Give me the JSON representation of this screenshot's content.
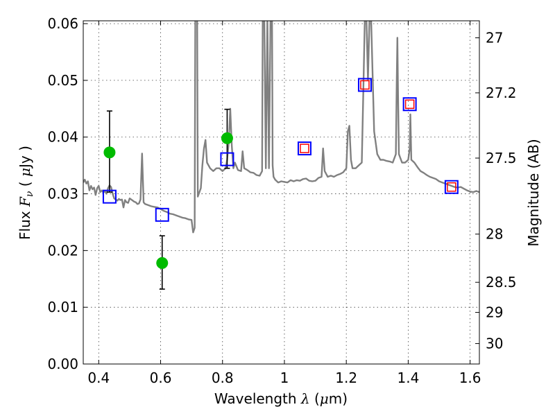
{
  "chart_data": {
    "type": "line",
    "xlabel": "Wavelength  λ (μm)",
    "ylabel": "Flux  F_ν  ( μJy )",
    "ylabel_parts": {
      "a": "Flux  ",
      "b": "F",
      "c": "ν",
      "d": "  ( ",
      "e": "μ",
      "f": "Jy )"
    },
    "xlabel_parts": {
      "a": "Wavelength  ",
      "b": "λ",
      "c": " (",
      "d": "μ",
      "e": "m)"
    },
    "y2label": "Magnitude (AB)",
    "xlim": [
      0.35,
      1.63
    ],
    "ylim": [
      0.0,
      0.0605
    ],
    "xticks": [
      0.4,
      0.6,
      0.8,
      1.0,
      1.2,
      1.4,
      1.6
    ],
    "xtick_labels": [
      "0.4",
      "0.6",
      "0.8",
      "1",
      "1.2",
      "1.4",
      "1.6"
    ],
    "yticks": [
      0.0,
      0.01,
      0.02,
      0.03,
      0.04,
      0.05,
      0.06
    ],
    "ytick_labels": [
      "0.00",
      "0.01",
      "0.02",
      "0.03",
      "0.04",
      "0.05",
      "0.06"
    ],
    "mag_ticks": [
      {
        "label": "27",
        "flux": 0.0575
      },
      {
        "label": "27.2",
        "flux": 0.0478
      },
      {
        "label": "27.5",
        "flux": 0.0363
      },
      {
        "label": "28",
        "flux": 0.0229
      },
      {
        "label": "28.5",
        "flux": 0.0144
      },
      {
        "label": "29",
        "flux": 0.0091
      },
      {
        "label": "30",
        "flux": 0.0036
      }
    ],
    "grid": true,
    "series": [
      {
        "kind": "spectrum",
        "color": "#808080",
        "x": [
          0.35,
          0.355,
          0.36,
          0.365,
          0.37,
          0.375,
          0.38,
          0.385,
          0.39,
          0.395,
          0.4,
          0.405,
          0.41,
          0.415,
          0.42,
          0.425,
          0.43,
          0.435,
          0.44,
          0.445,
          0.45,
          0.455,
          0.46,
          0.465,
          0.47,
          0.475,
          0.48,
          0.485,
          0.49,
          0.495,
          0.5,
          0.505,
          0.51,
          0.515,
          0.52,
          0.525,
          0.53,
          0.535,
          0.54,
          0.545,
          0.55,
          0.56,
          0.57,
          0.58,
          0.59,
          0.6,
          0.61,
          0.62,
          0.63,
          0.64,
          0.65,
          0.66,
          0.67,
          0.68,
          0.69,
          0.7,
          0.705,
          0.71,
          0.712,
          0.714,
          0.716,
          0.718,
          0.72,
          0.73,
          0.735,
          0.74,
          0.745,
          0.75,
          0.76,
          0.77,
          0.78,
          0.79,
          0.8,
          0.81,
          0.815,
          0.82,
          0.825,
          0.83,
          0.835,
          0.84,
          0.85,
          0.86,
          0.865,
          0.87,
          0.88,
          0.89,
          0.9,
          0.91,
          0.92,
          0.928,
          0.93,
          0.935,
          0.94,
          0.945,
          0.95,
          0.955,
          0.958,
          0.96,
          0.962,
          0.965,
          0.97,
          0.98,
          0.99,
          1.0,
          1.01,
          1.02,
          1.03,
          1.04,
          1.05,
          1.06,
          1.07,
          1.08,
          1.09,
          1.1,
          1.11,
          1.12,
          1.125,
          1.13,
          1.14,
          1.15,
          1.16,
          1.17,
          1.18,
          1.19,
          1.2,
          1.205,
          1.21,
          1.215,
          1.22,
          1.23,
          1.24,
          1.25,
          1.255,
          1.26,
          1.265,
          1.27,
          1.275,
          1.28,
          1.29,
          1.3,
          1.31,
          1.32,
          1.33,
          1.34,
          1.35,
          1.36,
          1.363,
          1.365,
          1.367,
          1.37,
          1.38,
          1.39,
          1.4,
          1.405,
          1.407,
          1.41,
          1.42,
          1.43,
          1.44,
          1.45,
          1.46,
          1.47,
          1.48,
          1.49,
          1.5,
          1.51,
          1.52,
          1.53,
          1.54,
          1.55,
          1.56,
          1.57,
          1.58,
          1.59,
          1.6,
          1.61,
          1.62,
          1.63
        ],
        "y": [
          0.032,
          0.0325,
          0.0318,
          0.0322,
          0.0306,
          0.0314,
          0.0308,
          0.0311,
          0.0298,
          0.031,
          0.0314,
          0.0303,
          0.0306,
          0.0302,
          0.0305,
          0.03,
          0.031,
          0.0315,
          0.0312,
          0.03,
          0.0292,
          0.029,
          0.0288,
          0.0291,
          0.0289,
          0.029,
          0.0276,
          0.0289,
          0.0285,
          0.0284,
          0.0292,
          0.029,
          0.0288,
          0.0286,
          0.0285,
          0.0282,
          0.0283,
          0.029,
          0.0371,
          0.0285,
          0.0282,
          0.028,
          0.0278,
          0.0277,
          0.0276,
          0.0273,
          0.027,
          0.0268,
          0.0265,
          0.0264,
          0.0262,
          0.026,
          0.0258,
          0.0257,
          0.0255,
          0.0254,
          0.0232,
          0.024,
          0.061,
          0.061,
          0.061,
          0.061,
          0.0295,
          0.031,
          0.035,
          0.038,
          0.0395,
          0.0355,
          0.0345,
          0.034,
          0.0345,
          0.0345,
          0.034,
          0.0345,
          0.036,
          0.039,
          0.045,
          0.0385,
          0.0345,
          0.0355,
          0.0342,
          0.034,
          0.0375,
          0.0345,
          0.0342,
          0.0338,
          0.0337,
          0.0333,
          0.0332,
          0.034,
          0.061,
          0.061,
          0.0345,
          0.061,
          0.0345,
          0.061,
          0.061,
          0.061,
          0.035,
          0.033,
          0.0325,
          0.032,
          0.0322,
          0.0321,
          0.032,
          0.0324,
          0.0322,
          0.0324,
          0.0323,
          0.0326,
          0.0327,
          0.0323,
          0.0322,
          0.0323,
          0.0328,
          0.033,
          0.038,
          0.034,
          0.033,
          0.0332,
          0.033,
          0.0333,
          0.0335,
          0.0338,
          0.0345,
          0.041,
          0.042,
          0.036,
          0.0345,
          0.0345,
          0.035,
          0.0355,
          0.048,
          0.061,
          0.061,
          0.05,
          0.061,
          0.061,
          0.041,
          0.037,
          0.036,
          0.036,
          0.0358,
          0.0357,
          0.0355,
          0.037,
          0.05,
          0.0575,
          0.048,
          0.037,
          0.0355,
          0.0355,
          0.036,
          0.038,
          0.044,
          0.036,
          0.0355,
          0.0347,
          0.034,
          0.0337,
          0.0333,
          0.033,
          0.0328,
          0.0326,
          0.0322,
          0.032,
          0.0318,
          0.0316,
          0.0314,
          0.0312,
          0.0311,
          0.0312,
          0.0309,
          0.0306,
          0.0304,
          0.0303,
          0.0305,
          0.0303
        ]
      },
      {
        "kind": "green-points",
        "color": "#00bb00",
        "x": [
          0.435,
          0.605,
          0.815
        ],
        "y": [
          0.0373,
          0.0178,
          0.0398
        ],
        "err_low": [
          0.0303,
          0.0132,
          0.0345
        ],
        "err_high": [
          0.0446,
          0.0226,
          0.0449
        ]
      },
      {
        "kind": "blue-squares",
        "color": "#0000ff",
        "x": [
          0.435,
          0.605,
          0.815,
          1.065,
          1.26,
          1.405,
          1.54
        ],
        "y": [
          0.0295,
          0.0263,
          0.0361,
          0.038,
          0.0492,
          0.0458,
          0.0312
        ]
      },
      {
        "kind": "red-squares",
        "color": "#ff0000",
        "x": [
          1.065,
          1.26,
          1.405,
          1.54
        ],
        "y": [
          0.038,
          0.0492,
          0.0458,
          0.0312
        ]
      }
    ]
  }
}
